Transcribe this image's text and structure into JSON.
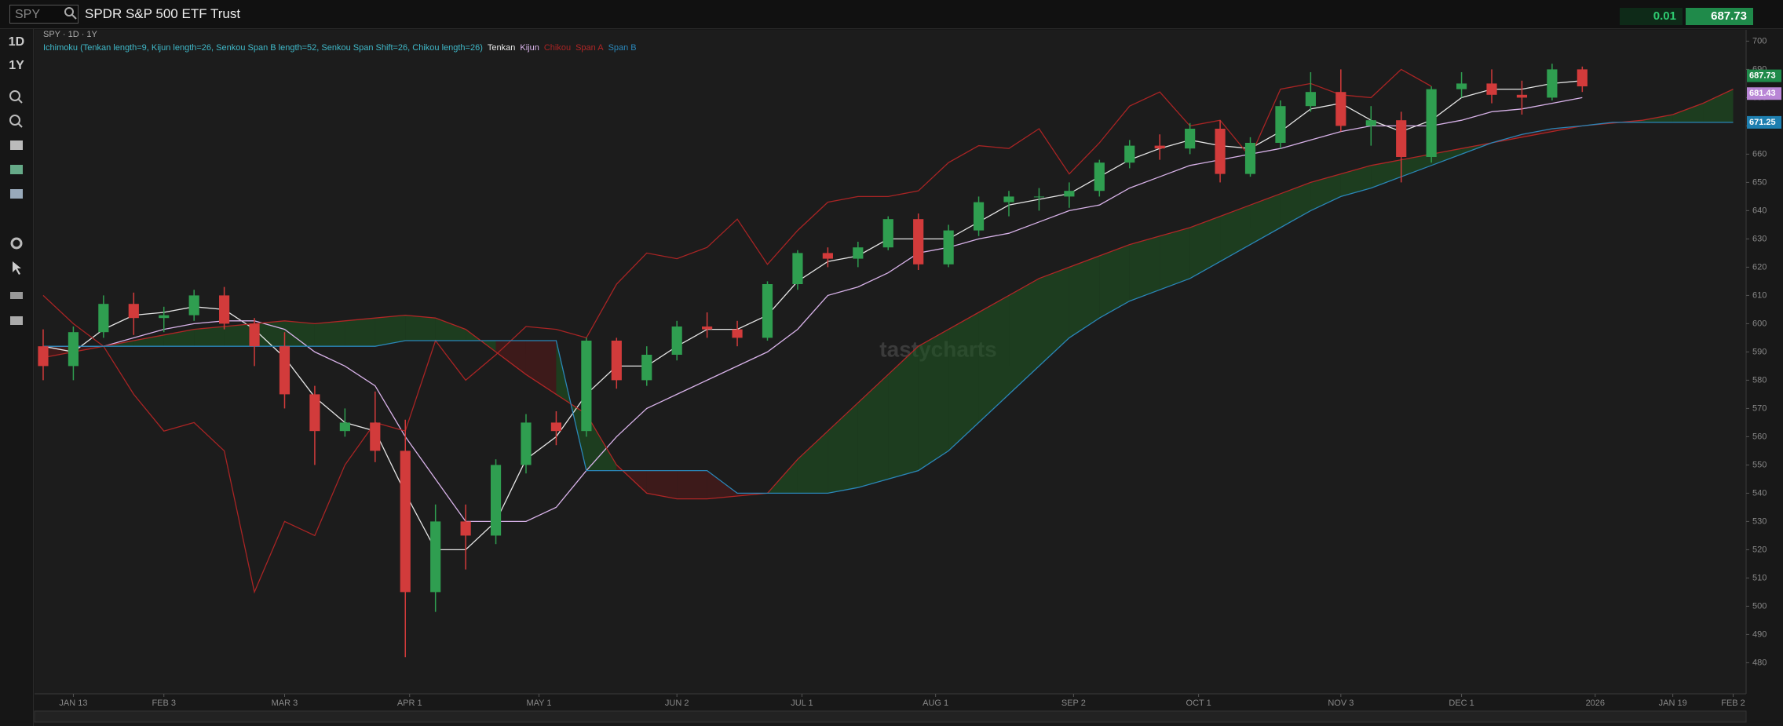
{
  "header": {
    "symbol": "SPY",
    "name": "SPDR S&P 500 ETF Trust",
    "change": "0.01",
    "last": "687.73"
  },
  "toolbar": {
    "period": "1D",
    "range": "1Y"
  },
  "watermark": "tastycharts",
  "chart_data": {
    "type": "candlestick",
    "subtitle": "SPY · 1D · 1Y",
    "indicator": "Ichimoku (Tenkan length=9, Kijun length=26, Senkou Span B length=52, Senkou Span Shift=26, Chikou length=26)",
    "up_color": "#2f9e50",
    "down_color": "#d23b3b",
    "cloud_up_color": "#1f5a22",
    "cloud_down_color": "#5a1a1a",
    "xlim": [
      3,
      400
    ],
    "xticks": [
      {
        "value": 12,
        "label": "JAN 13"
      },
      {
        "value": 33,
        "label": "FEB 3"
      },
      {
        "value": 61,
        "label": "MAR 3"
      },
      {
        "value": 90,
        "label": "APR 1"
      },
      {
        "value": 120,
        "label": "MAY 1"
      },
      {
        "value": 152,
        "label": "JUN 2"
      },
      {
        "value": 181,
        "label": "JUL 1"
      },
      {
        "value": 212,
        "label": "AUG 1"
      },
      {
        "value": 244,
        "label": "SEP 2"
      },
      {
        "value": 273,
        "label": "OCT 1"
      },
      {
        "value": 306,
        "label": "NOV 3"
      },
      {
        "value": 334,
        "label": "DEC 1"
      },
      {
        "value": 365,
        "label": "2026"
      },
      {
        "value": 383,
        "label": "JAN 19"
      },
      {
        "value": 397,
        "label": "FEB 2"
      }
    ],
    "ylim": [
      469,
      704
    ],
    "yticks": [
      480,
      490,
      500,
      510,
      520,
      530,
      540,
      550,
      560,
      570,
      580,
      590,
      600,
      610,
      620,
      630,
      640,
      650,
      660,
      670,
      680,
      690,
      700
    ],
    "grid": false,
    "candles": {
      "x": [
        5,
        12,
        19,
        26,
        33,
        40,
        47,
        54,
        61,
        68,
        75,
        82,
        89,
        96,
        103,
        110,
        117,
        124,
        131,
        138,
        145,
        152,
        159,
        166,
        173,
        180,
        187,
        194,
        201,
        208,
        215,
        222,
        229,
        236,
        243,
        250,
        257,
        264,
        271,
        278,
        285,
        292,
        299,
        306,
        313,
        320,
        327,
        334,
        341,
        348,
        355,
        362
      ],
      "open": [
        592,
        585,
        597,
        607,
        602,
        603,
        610,
        600,
        592,
        575,
        562,
        565,
        555,
        505,
        530,
        525,
        550,
        565,
        562,
        594,
        580,
        589,
        599,
        598,
        595,
        614,
        625,
        623,
        627,
        637,
        621,
        633,
        643,
        645,
        645,
        647,
        657,
        663,
        662,
        669,
        653,
        664,
        677,
        682,
        670,
        672,
        659,
        683,
        685,
        681,
        680,
        690
      ],
      "high": [
        598,
        599,
        610,
        611,
        606,
        612,
        613,
        602,
        597,
        578,
        570,
        576,
        566,
        536,
        536,
        552,
        568,
        569,
        595,
        595,
        592,
        601,
        604,
        601,
        615,
        626,
        627,
        629,
        638,
        639,
        635,
        645,
        647,
        648,
        650,
        658,
        665,
        667,
        671,
        672,
        666,
        679,
        689,
        690,
        677,
        675,
        684,
        689,
        690,
        686,
        692,
        691
      ],
      "low": [
        580,
        580,
        595,
        596,
        597,
        601,
        598,
        585,
        570,
        550,
        560,
        551,
        482,
        498,
        513,
        522,
        547,
        557,
        560,
        577,
        578,
        587,
        595,
        592,
        594,
        612,
        620,
        620,
        626,
        619,
        620,
        631,
        638,
        640,
        641,
        645,
        655,
        658,
        660,
        650,
        652,
        662,
        675,
        668,
        663,
        650,
        657,
        680,
        678,
        674,
        679,
        682
      ],
      "close": [
        585,
        597,
        607,
        602,
        603,
        610,
        600,
        592,
        575,
        562,
        565,
        555,
        505,
        530,
        525,
        550,
        565,
        562,
        594,
        580,
        589,
        599,
        598,
        595,
        614,
        625,
        623,
        627,
        637,
        621,
        633,
        643,
        645,
        645,
        647,
        657,
        663,
        662,
        669,
        653,
        664,
        677,
        682,
        670,
        672,
        659,
        683,
        685,
        681,
        680,
        690,
        684
      ]
    },
    "series": [
      {
        "name": "Tenkan",
        "color": "#e6e6e6",
        "x": [
          5,
          12,
          19,
          26,
          33,
          40,
          47,
          54,
          61,
          68,
          75,
          82,
          89,
          96,
          103,
          110,
          117,
          124,
          131,
          138,
          145,
          152,
          159,
          166,
          173,
          180,
          187,
          194,
          201,
          208,
          215,
          222,
          229,
          236,
          243,
          250,
          257,
          264,
          271,
          278,
          285,
          292,
          299,
          306,
          313,
          320,
          327,
          334,
          341,
          348,
          355,
          362
        ],
        "values": [
          592,
          590,
          598,
          603,
          604,
          606,
          605,
          598,
          588,
          574,
          565,
          562,
          540,
          520,
          520,
          530,
          552,
          560,
          575,
          585,
          585,
          592,
          598,
          598,
          603,
          615,
          622,
          624,
          630,
          630,
          630,
          636,
          642,
          644,
          646,
          652,
          658,
          662,
          665,
          663,
          662,
          668,
          676,
          678,
          672,
          668,
          672,
          680,
          683,
          683,
          685,
          686
        ]
      },
      {
        "name": "Kijun",
        "color": "#d9b3ea",
        "x": [
          5,
          12,
          19,
          26,
          33,
          40,
          47,
          54,
          61,
          68,
          75,
          82,
          89,
          96,
          103,
          110,
          117,
          124,
          131,
          138,
          145,
          152,
          159,
          166,
          173,
          180,
          187,
          194,
          201,
          208,
          215,
          222,
          229,
          236,
          243,
          250,
          257,
          264,
          271,
          278,
          285,
          292,
          299,
          306,
          313,
          320,
          327,
          334,
          341,
          348,
          355,
          362
        ],
        "values": [
          592,
          592,
          592,
          595,
          598,
          600,
          601,
          601,
          598,
          590,
          585,
          578,
          560,
          545,
          530,
          530,
          530,
          535,
          548,
          560,
          570,
          575,
          580,
          585,
          590,
          598,
          610,
          613,
          618,
          625,
          627,
          630,
          632,
          636,
          640,
          642,
          648,
          652,
          656,
          658,
          660,
          662,
          665,
          668,
          670,
          670,
          670,
          672,
          675,
          676,
          678,
          680
        ]
      },
      {
        "name": "Chikou",
        "color": "#a82424",
        "x": [
          5,
          12,
          19,
          26,
          33,
          40,
          47,
          54,
          61,
          68,
          75,
          82,
          89,
          96,
          103,
          110,
          117,
          124,
          131,
          138,
          145,
          152,
          159,
          166,
          173,
          180,
          187,
          194,
          201,
          208,
          215,
          222,
          229,
          236,
          243,
          250,
          257,
          264,
          271,
          278,
          285,
          292,
          299,
          306,
          313,
          320,
          327
        ],
        "values": [
          610,
          600,
          592,
          575,
          562,
          565,
          555,
          505,
          530,
          525,
          550,
          565,
          562,
          594,
          580,
          589,
          599,
          598,
          595,
          614,
          625,
          623,
          627,
          637,
          621,
          633,
          643,
          645,
          645,
          647,
          657,
          663,
          662,
          669,
          653,
          664,
          677,
          682,
          670,
          672,
          659,
          683,
          685,
          681,
          680,
          690,
          684
        ]
      },
      {
        "name": "Span A",
        "color": "#b02626",
        "x": [
          5,
          12,
          19,
          26,
          33,
          40,
          47,
          54,
          61,
          68,
          75,
          82,
          89,
          96,
          103,
          110,
          117,
          124,
          131,
          138,
          145,
          152,
          159,
          166,
          173,
          180,
          187,
          194,
          201,
          208,
          215,
          222,
          229,
          236,
          243,
          250,
          257,
          264,
          271,
          278,
          285,
          292,
          299,
          306,
          313,
          320,
          327,
          334,
          341,
          348,
          355,
          362,
          369,
          376,
          383,
          390,
          397
        ],
        "values": [
          588,
          590,
          592,
          594,
          596,
          598,
          599,
          600,
          601,
          600,
          601,
          602,
          603,
          602,
          598,
          590,
          582,
          575,
          568,
          550,
          540,
          538,
          538,
          539,
          540,
          552,
          562,
          572,
          582,
          592,
          598,
          604,
          610,
          616,
          620,
          624,
          628,
          631,
          634,
          638,
          642,
          646,
          650,
          653,
          656,
          658,
          660,
          662,
          664,
          666,
          668,
          670,
          671,
          672,
          674,
          678,
          683
        ]
      },
      {
        "name": "Span B",
        "color": "#2a86b8",
        "x": [
          5,
          12,
          19,
          26,
          33,
          40,
          47,
          54,
          61,
          68,
          75,
          82,
          89,
          96,
          103,
          110,
          117,
          124,
          131,
          138,
          145,
          152,
          159,
          166,
          173,
          180,
          187,
          194,
          201,
          208,
          215,
          222,
          229,
          236,
          243,
          250,
          257,
          264,
          271,
          278,
          285,
          292,
          299,
          306,
          313,
          320,
          327,
          334,
          341,
          348,
          355,
          362,
          369,
          376,
          383,
          390,
          397
        ],
        "values": [
          592,
          592,
          592,
          592,
          592,
          592,
          592,
          592,
          592,
          592,
          592,
          592,
          594,
          594,
          594,
          594,
          594,
          594,
          548,
          548,
          548,
          548,
          548,
          540,
          540,
          540,
          540,
          542,
          545,
          548,
          555,
          565,
          575,
          585,
          595,
          602,
          608,
          612,
          616,
          622,
          628,
          634,
          640,
          645,
          648,
          652,
          656,
          660,
          664,
          667,
          669,
          670,
          671.25,
          671.25,
          671.25,
          671.25,
          671.25
        ]
      }
    ],
    "price_tags": [
      {
        "value": 687.73,
        "color": "#1f8a4a"
      },
      {
        "value": 681.43,
        "color": "#b986d6"
      },
      {
        "value": 671.25,
        "color": "#1e7fb0"
      }
    ]
  }
}
